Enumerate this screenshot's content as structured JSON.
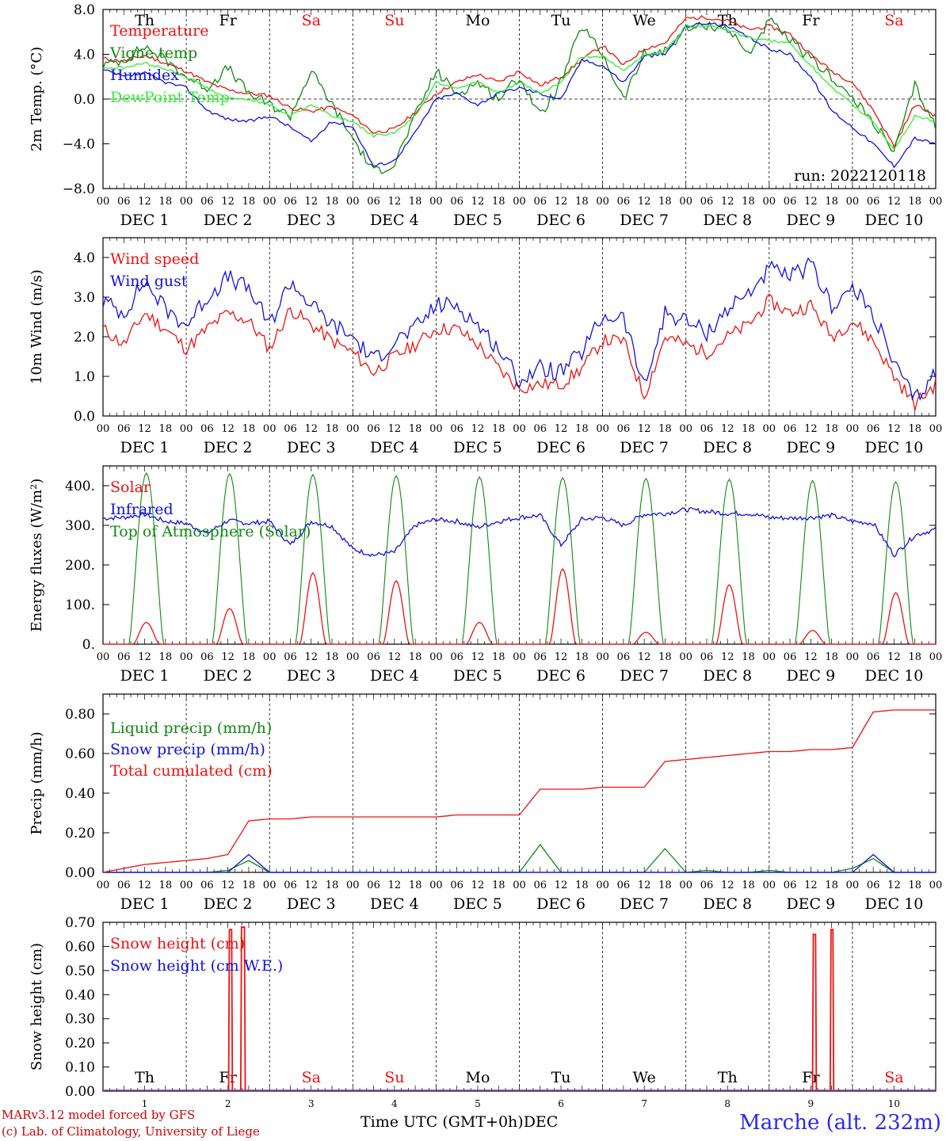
{
  "days": {
    "names": [
      "Th",
      "Fr",
      "Sa",
      "Su",
      "Mo",
      "Tu",
      "We",
      "Th",
      "Fr",
      "Sa"
    ],
    "weekend": [
      false,
      false,
      true,
      true,
      false,
      false,
      false,
      false,
      false,
      true
    ],
    "dates": [
      "DEC  1",
      "DEC  2",
      "DEC  3",
      "DEC  4",
      "DEC  5",
      "DEC  6",
      "DEC  7",
      "DEC  8",
      "DEC  9",
      "DEC 10"
    ],
    "numbers": [
      "1",
      "2",
      "3",
      "4",
      "5",
      "6",
      "7",
      "8",
      "9",
      "10"
    ],
    "hour_ticks": [
      "00",
      "06",
      "12",
      "18"
    ],
    "final_tick": "00"
  },
  "colors": {
    "red": "#ee1111",
    "green": "#118811",
    "blue": "#1111dd",
    "lightgreen": "#33ee33"
  },
  "footer": {
    "model": "MARv3.12 model forced by GFS",
    "lab": "(c) Lab. of Climatology, University of Liege",
    "axis_label": "Time UTC (GMT+0h)",
    "month": "DEC",
    "station": "Marche (alt. 232m)"
  },
  "chart_data": [
    {
      "type": "line",
      "ylabel": "2m Temp. (°C)",
      "ylim": [
        -8,
        8
      ],
      "yticks": [
        "8.0",
        "4.0",
        "0.0",
        "−4.0",
        "−8.0"
      ],
      "ytick_values": [
        8,
        4,
        0,
        -4,
        -8
      ],
      "zero_line": true,
      "show_day_names": true,
      "annotation": "run: 2022120118",
      "x_hours": [
        0,
        6,
        12,
        18,
        24,
        30,
        36,
        42,
        48,
        54,
        60,
        66,
        72,
        78,
        84,
        90,
        96,
        102,
        108,
        114,
        120,
        126,
        132,
        138,
        144,
        150,
        156,
        162,
        168,
        174,
        180,
        186,
        192,
        198,
        204,
        210,
        216,
        222,
        228,
        234,
        240
      ],
      "series": [
        {
          "name": "Temperature",
          "color": "red",
          "values": [
            3.6,
            3.4,
            3.9,
            3.2,
            2.5,
            1.5,
            0.8,
            0.5,
            0.3,
            -0.8,
            -1.1,
            -0.7,
            -1.5,
            -3.0,
            -2.7,
            -1.2,
            0.5,
            1.5,
            2.2,
            1.5,
            2.5,
            1.2,
            2.0,
            3.5,
            4.8,
            3.0,
            4.5,
            5.0,
            7.2,
            7.3,
            7.0,
            6.2,
            6.5,
            5.8,
            4.0,
            2.5,
            1.5,
            -1.0,
            -4.2,
            -0.5,
            -1.5
          ]
        },
        {
          "name": "Vigne temp",
          "color": "green",
          "values": [
            3.0,
            3.5,
            4.7,
            3.5,
            2.0,
            1.0,
            2.8,
            0.5,
            -0.5,
            -1.5,
            2.5,
            -0.5,
            -3.5,
            -6.5,
            -5.8,
            -1.5,
            2.5,
            0.5,
            1.5,
            0.0,
            2.0,
            -1.5,
            1.5,
            6.5,
            4.0,
            0.0,
            4.0,
            4.3,
            6.2,
            6.6,
            6.3,
            4.0,
            7.0,
            5.2,
            3.5,
            2.0,
            0.0,
            -2.0,
            -4.8,
            1.2,
            -2.5
          ]
        },
        {
          "name": "Humidex",
          "color": "blue",
          "values": [
            2.6,
            2.0,
            2.3,
            1.5,
            1.0,
            -1.0,
            -1.8,
            -2.0,
            -1.5,
            -2.5,
            -3.8,
            -2.0,
            -2.5,
            -6.0,
            -5.5,
            -3.0,
            0.0,
            0.5,
            -0.5,
            0.5,
            1.0,
            0.5,
            0.0,
            3.5,
            3.0,
            1.5,
            3.8,
            4.0,
            6.5,
            6.8,
            6.5,
            5.5,
            4.5,
            4.0,
            2.0,
            -1.0,
            -2.5,
            -4.0,
            -6.0,
            -3.5,
            -4.0
          ]
        },
        {
          "name": "DewPoint Temp",
          "color": "lightgreen",
          "values": [
            2.8,
            2.8,
            3.2,
            2.7,
            2.0,
            1.0,
            0.0,
            0.0,
            -0.5,
            -1.5,
            -0.5,
            -1.5,
            -2.0,
            -3.3,
            -3.0,
            -1.5,
            1.5,
            1.0,
            1.5,
            0.5,
            1.5,
            0.5,
            1.5,
            3.8,
            3.8,
            2.5,
            4.0,
            4.2,
            6.5,
            6.6,
            6.2,
            5.5,
            5.2,
            5.0,
            3.0,
            1.0,
            -0.5,
            -2.0,
            -4.5,
            -1.5,
            -2.0
          ]
        }
      ]
    },
    {
      "type": "line",
      "ylabel": "10m Wind (m/s)",
      "ylim": [
        0,
        4.5
      ],
      "yticks": [
        "0.0",
        "1.0",
        "2.0",
        "3.0",
        "4.0"
      ],
      "ytick_values": [
        0,
        1,
        2,
        3,
        4
      ],
      "show_day_names": false,
      "x_hours": [
        0,
        6,
        12,
        18,
        24,
        30,
        36,
        42,
        48,
        54,
        60,
        66,
        72,
        78,
        84,
        90,
        96,
        102,
        108,
        114,
        120,
        126,
        132,
        138,
        144,
        150,
        156,
        162,
        168,
        174,
        180,
        186,
        192,
        198,
        204,
        210,
        216,
        222,
        228,
        234,
        240
      ],
      "series": [
        {
          "name": "Wind speed",
          "color": "red",
          "values": [
            2.2,
            1.8,
            2.6,
            2.2,
            1.7,
            2.2,
            2.6,
            2.4,
            1.7,
            2.7,
            2.3,
            1.9,
            1.6,
            1.1,
            1.5,
            1.8,
            2.2,
            2.2,
            1.8,
            1.2,
            0.7,
            0.8,
            0.8,
            1.2,
            1.9,
            1.9,
            0.5,
            2.0,
            1.8,
            1.6,
            2.0,
            2.3,
            2.9,
            2.6,
            2.8,
            2.0,
            2.4,
            1.9,
            1.0,
            0.3,
            0.8
          ]
        },
        {
          "name": "Wind gust",
          "color": "blue",
          "values": [
            2.9,
            2.6,
            3.4,
            2.7,
            2.3,
            3.0,
            3.5,
            3.2,
            2.3,
            3.4,
            2.8,
            2.3,
            2.0,
            1.4,
            1.9,
            2.2,
            2.8,
            2.8,
            2.3,
            1.7,
            0.9,
            1.2,
            1.1,
            1.6,
            2.5,
            2.5,
            0.7,
            2.6,
            2.4,
            2.1,
            2.7,
            3.1,
            3.7,
            3.5,
            3.8,
            2.8,
            3.2,
            2.6,
            1.3,
            0.4,
            1.1
          ]
        }
      ]
    },
    {
      "type": "line",
      "ylabel": "Energy fluxes (W/m²)",
      "ylim": [
        0,
        450
      ],
      "yticks": [
        "0.",
        "100.",
        "200.",
        "300.",
        "400."
      ],
      "ytick_values": [
        0,
        100,
        200,
        300,
        400
      ],
      "show_day_names": false,
      "solar_peaks": [
        55,
        90,
        180,
        160,
        55,
        190,
        30,
        150,
        35,
        130
      ],
      "toa_peaks": [
        432,
        430,
        428,
        425,
        422,
        420,
        418,
        416,
        413,
        410
      ],
      "x_hours": [
        0,
        6,
        12,
        18,
        24,
        30,
        36,
        42,
        48,
        54,
        60,
        66,
        72,
        78,
        84,
        90,
        96,
        102,
        108,
        114,
        120,
        126,
        132,
        138,
        144,
        150,
        156,
        162,
        168,
        174,
        180,
        186,
        192,
        198,
        204,
        210,
        216,
        222,
        228,
        234,
        240
      ],
      "series": [
        {
          "name": "Solar",
          "color": "red"
        },
        {
          "name": "Infrared",
          "color": "blue",
          "values": [
            318,
            320,
            328,
            310,
            305,
            280,
            312,
            305,
            310,
            250,
            310,
            298,
            240,
            225,
            232,
            300,
            315,
            310,
            295,
            310,
            320,
            325,
            250,
            315,
            320,
            300,
            328,
            330,
            340,
            335,
            330,
            330,
            320,
            318,
            320,
            325,
            310,
            305,
            225,
            275,
            290
          ]
        },
        {
          "name": "Top of Atmosphere (Solar)",
          "color": "green"
        }
      ]
    },
    {
      "type": "line",
      "ylabel": "Precip (mm/h)",
      "ylim": [
        0,
        0.9
      ],
      "yticks": [
        "0.00",
        "0.20",
        "0.40",
        "0.60",
        "0.80"
      ],
      "ytick_values": [
        0,
        0.2,
        0.4,
        0.6,
        0.8
      ],
      "show_day_names": false,
      "x_hours": [
        0,
        6,
        12,
        18,
        24,
        30,
        36,
        42,
        48,
        54,
        60,
        66,
        72,
        78,
        84,
        90,
        96,
        102,
        108,
        114,
        120,
        126,
        132,
        138,
        144,
        150,
        156,
        162,
        168,
        174,
        180,
        186,
        192,
        198,
        204,
        210,
        216,
        222,
        228,
        234,
        240
      ],
      "series": [
        {
          "name": "Liquid precip (mm/h)",
          "color": "green",
          "values": [
            0,
            0,
            0,
            0,
            0,
            0,
            0.01,
            0.06,
            0,
            0,
            0,
            0,
            0,
            0,
            0,
            0,
            0,
            0,
            0,
            0,
            0,
            0.14,
            0,
            0,
            0,
            0,
            0,
            0.12,
            0,
            0.01,
            0,
            0,
            0.01,
            0,
            0,
            0,
            0.02,
            0.07,
            0,
            0,
            0
          ]
        },
        {
          "name": "Snow precip (mm/h)",
          "color": "blue",
          "values": [
            0,
            0,
            0,
            0,
            0,
            0,
            0,
            0.09,
            0,
            0,
            0,
            0,
            0,
            0,
            0,
            0,
            0,
            0,
            0,
            0,
            0,
            0,
            0,
            0,
            0,
            0,
            0,
            0,
            0,
            0,
            0,
            0,
            0,
            0,
            0,
            0,
            0,
            0.09,
            0,
            0,
            0
          ]
        },
        {
          "name": "Total cumulated (cm)",
          "color": "red",
          "values": [
            0.0,
            0.02,
            0.04,
            0.05,
            0.06,
            0.07,
            0.09,
            0.26,
            0.27,
            0.27,
            0.28,
            0.28,
            0.28,
            0.28,
            0.28,
            0.28,
            0.28,
            0.29,
            0.29,
            0.29,
            0.29,
            0.42,
            0.42,
            0.42,
            0.43,
            0.43,
            0.43,
            0.56,
            0.57,
            0.58,
            0.59,
            0.6,
            0.61,
            0.61,
            0.62,
            0.62,
            0.63,
            0.81,
            0.82,
            0.82,
            0.82
          ]
        }
      ]
    },
    {
      "type": "line",
      "ylabel": "Snow height (cm)",
      "ylim": [
        0,
        0.7
      ],
      "yticks": [
        "0.00",
        "0.10",
        "0.20",
        "0.30",
        "0.40",
        "0.50",
        "0.60",
        "0.70"
      ],
      "ytick_values": [
        0,
        0.1,
        0.2,
        0.3,
        0.4,
        0.5,
        0.6,
        0.7
      ],
      "show_day_names_inside": true,
      "series": [
        {
          "name": "Snow height (cm)",
          "color": "red",
          "spikes": [
            {
              "start_hour": 36.2,
              "end_hour": 37.3,
              "value": 0.67
            },
            {
              "start_hour": 39.7,
              "end_hour": 41.0,
              "value": 0.68
            },
            {
              "start_hour": 204.5,
              "end_hour": 205.6,
              "value": 0.65
            },
            {
              "start_hour": 209.6,
              "end_hour": 210.6,
              "value": 0.67
            }
          ]
        },
        {
          "name": "Snow height (cm W.E.)",
          "color": "blue",
          "values": []
        }
      ]
    }
  ]
}
